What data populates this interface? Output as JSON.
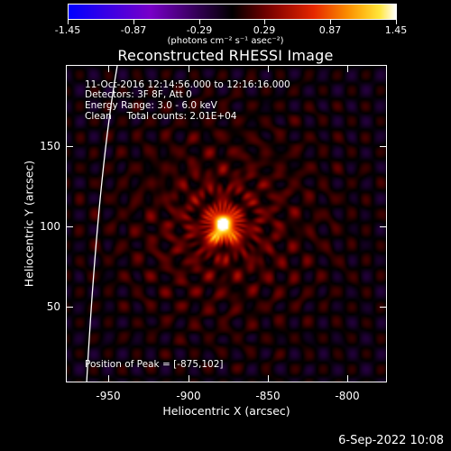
{
  "colorbar": {
    "tick_labels": [
      "-1.45",
      "-0.87",
      "-0.29",
      "0.29",
      "0.87",
      "1.45"
    ],
    "units": "(photons cm⁻² s⁻¹ asec⁻²)",
    "range": [
      -1.45,
      1.45
    ]
  },
  "title": "Reconstructed RHESSI Image",
  "info": {
    "time_range": "11-Oct-2016 12:14:56.000 to 12:16:16.000",
    "detectors": "Detectors: 3F 8F, Att 0",
    "energy_range": "Energy Range: 3.0 - 6.0 keV",
    "algorithm": "Clean     Total counts: 2.01E+04",
    "peak": "Position of Peak = [-875,102]"
  },
  "axes": {
    "xlabel": "Heliocentric X (arcsec)",
    "ylabel": "Heliocentric Y (arcsec)",
    "xticks": [
      "-950",
      "-900",
      "-850",
      "-800"
    ],
    "yticks": [
      "150",
      "100",
      "50"
    ],
    "xrange": [
      -973,
      -773
    ],
    "yrange": [
      2,
      202
    ]
  },
  "source_position": [
    -875,
    102
  ],
  "datestamp": "6-Sep-2022 10:08",
  "colors": {
    "background": "#000000",
    "axes": "#ffffff",
    "limb": "#ffffff"
  }
}
